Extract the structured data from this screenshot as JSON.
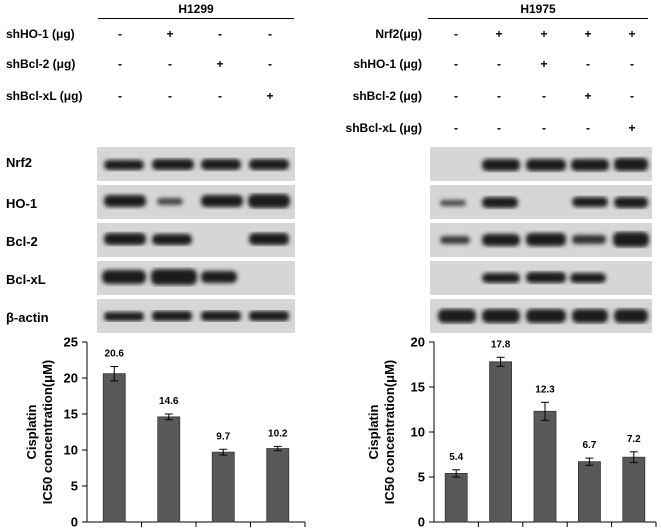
{
  "left_panel": {
    "title": "H1299",
    "rows": [
      {
        "label": "shHO-1 (μg)",
        "marks": [
          "-",
          "+",
          "-",
          "-"
        ]
      },
      {
        "label": "shBcl-2 (μg)",
        "marks": [
          "-",
          "-",
          "+",
          "-"
        ]
      },
      {
        "label": "shBcl-xL (μg)",
        "marks": [
          "-",
          "-",
          "-",
          "+"
        ]
      }
    ],
    "blots": [
      "Nrf2",
      "HO-1",
      "Bcl-2",
      "Bcl-xL",
      "β-actin"
    ]
  },
  "right_panel": {
    "title": "H1975",
    "rows": [
      {
        "label": "Nrf2(μg)",
        "marks": [
          "-",
          "+",
          "+",
          "+",
          "+"
        ]
      },
      {
        "label": "shHO-1 (μg)",
        "marks": [
          "-",
          "-",
          "+",
          "-",
          "-"
        ]
      },
      {
        "label": "shBcl-2 (μg)",
        "marks": [
          "-",
          "-",
          "-",
          "+",
          "-"
        ]
      },
      {
        "label": "shBcl-xL (μg)",
        "marks": [
          "-",
          "-",
          "-",
          "-",
          "+"
        ]
      }
    ]
  },
  "chart_data": [
    {
      "type": "bar",
      "ylabel": "Cisplatin IC50 concentration(μM)",
      "ylim": [
        0,
        25
      ],
      "yticks": [
        0,
        5,
        10,
        15,
        20,
        25
      ],
      "values": [
        20.6,
        14.6,
        9.7,
        10.2
      ],
      "errors": [
        1.0,
        0.4,
        0.4,
        0.3
      ],
      "value_labels": [
        "20.6",
        "14.6",
        "9.7",
        "10.2"
      ],
      "bar_color": "#595959"
    },
    {
      "type": "bar",
      "ylabel": "Cisplatin IC50 concentration(μM)",
      "ylim": [
        0,
        20
      ],
      "yticks": [
        0,
        5,
        10,
        15,
        20
      ],
      "values": [
        5.4,
        17.8,
        12.3,
        6.7,
        7.2
      ],
      "errors": [
        0.4,
        0.5,
        1.0,
        0.4,
        0.6
      ],
      "value_labels": [
        "5.4",
        "17.8",
        "12.3",
        "6.7",
        "7.2"
      ],
      "bar_color": "#595959"
    }
  ]
}
